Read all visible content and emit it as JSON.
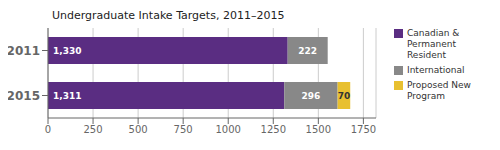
{
  "chart_data": {
    "type": "bar",
    "title": "Undergraduate Intake Targets, 2011–2015",
    "orientation": "horizontal",
    "stacked": true,
    "categories": [
      "2011",
      "2015"
    ],
    "series": [
      {
        "name": "Canadian &\nPermanent\nResident",
        "color": "#5a2d82",
        "values": [
          1330,
          1311
        ],
        "value_labels": [
          "1,330",
          "1,311"
        ]
      },
      {
        "name": "International",
        "color": "#888888",
        "values": [
          222,
          296
        ]
      },
      {
        "name": "Proposed New\nProgram",
        "color": "#e8c030",
        "values": [
          0,
          70
        ],
        "value_labels": [
          null,
          "70"
        ]
      }
    ],
    "xlim": [
      0,
      1820
    ],
    "xticks": [
      0,
      250,
      500,
      750,
      1000,
      1250,
      1500,
      1750
    ],
    "grid": true,
    "legend": "upper right",
    "data_labels": true
  }
}
